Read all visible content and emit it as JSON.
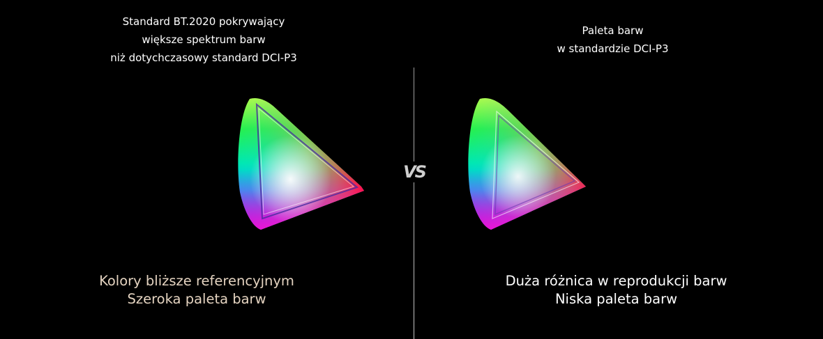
{
  "left_panel": {
    "heading_lines": [
      "Standard BT.2020 pokrywający",
      "większe spektrum barw",
      "niż dotychczasowy standard DCI-P3"
    ],
    "caption_lines": [
      "Kolory bliższe referencyjnym",
      "Szeroka paleta barw"
    ],
    "caption_color": "#e4d3c0"
  },
  "right_panel": {
    "heading_lines": [
      "Paleta barw",
      "w standardzie DCI-P3"
    ],
    "caption_lines": [
      "Duża różnica w reprodukcji barw",
      "Niska paleta barw"
    ],
    "caption_color": "#ffffff"
  },
  "versus_label": "VS",
  "divider_color": "#9a9a9a"
}
